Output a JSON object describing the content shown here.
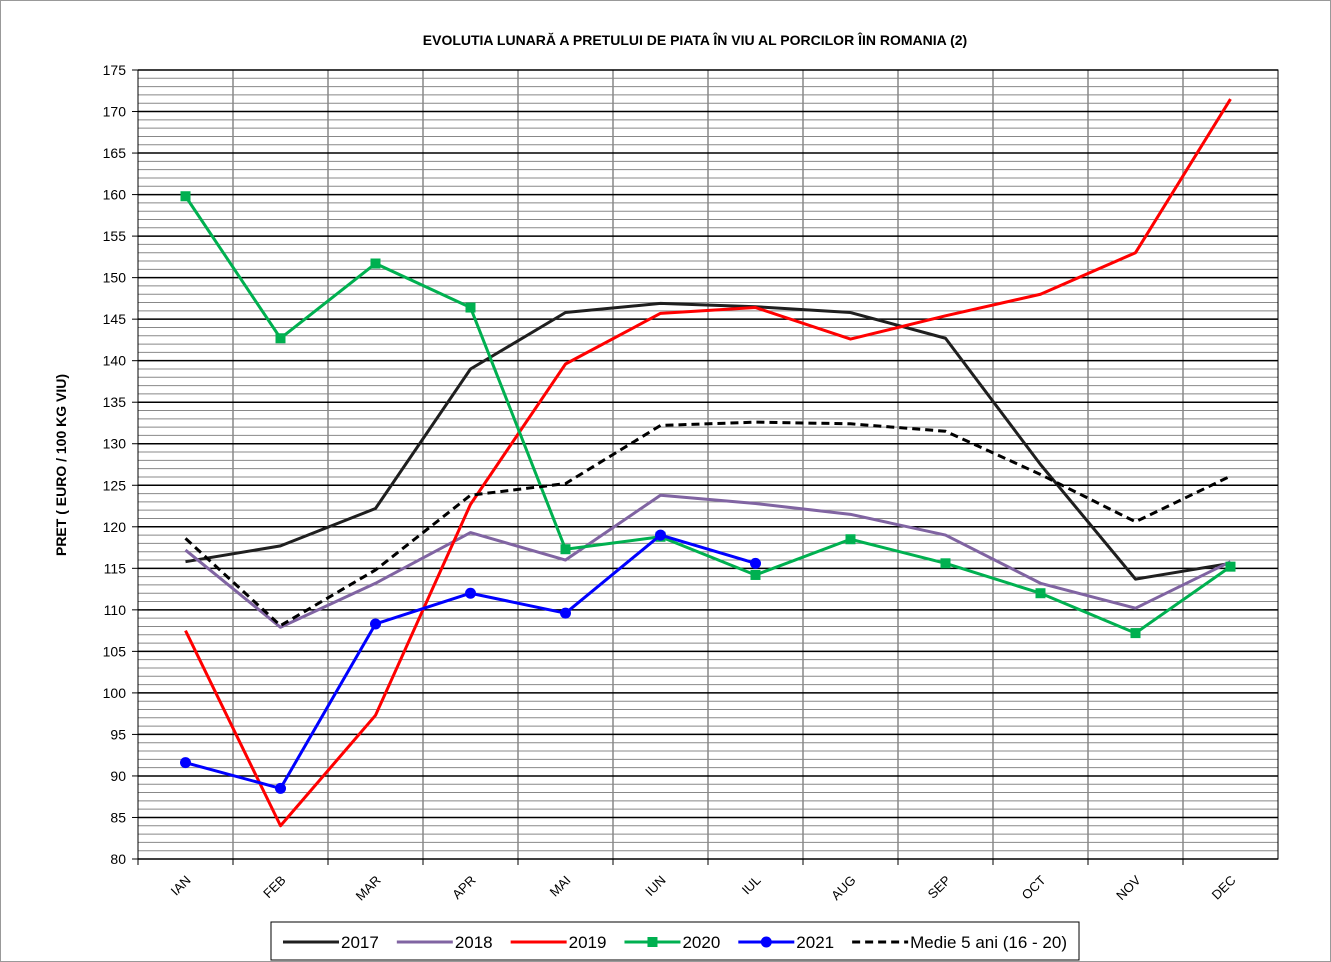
{
  "chart_data": {
    "type": "line",
    "title": "EVOLUTIA LUNARĂ A PRETULUI  DE PIATA ÎN VIU AL PORCILOR ÎIN ROMANIA (2)",
    "y_label": "PRET ( EURO / 100 KG VIU)",
    "categories": [
      "IAN",
      "FEB",
      "MAR",
      "APR",
      "MAI",
      "IUN",
      "IUL",
      "AUG",
      "SEP",
      "OCT",
      "NOV",
      "DEC"
    ],
    "ylim": [
      80,
      175
    ],
    "yticks": [
      80,
      85,
      90,
      95,
      100,
      105,
      110,
      115,
      120,
      125,
      130,
      135,
      140,
      145,
      150,
      155,
      160,
      165,
      170,
      175
    ],
    "grid": true,
    "minor_grid": true,
    "legend": "bottom",
    "series": [
      {
        "name": "2017",
        "color": "#1f1f1f",
        "values": [
          115.8,
          117.7,
          122.2,
          139,
          145.8,
          146.9,
          146.5,
          145.8,
          142.7,
          127.5,
          113.7,
          115.6
        ]
      },
      {
        "name": "2018",
        "color": "#8064a2",
        "values": [
          117.2,
          107.9,
          113.2,
          119.3,
          116,
          123.8,
          122.8,
          121.5,
          119,
          113.2,
          110.2,
          115.8
        ]
      },
      {
        "name": "2019",
        "color": "#ff0000",
        "values": [
          107.5,
          84,
          97.3,
          122.7,
          139.6,
          145.7,
          146.4,
          142.6,
          145.4,
          148,
          153,
          171.5
        ]
      },
      {
        "name": "2020",
        "color": "#00b050",
        "marker": "square",
        "values": [
          159.8,
          142.7,
          151.7,
          146.4,
          117.3,
          118.8,
          114.2,
          118.5,
          115.6,
          112,
          107.2,
          115.2
        ]
      },
      {
        "name": "2021",
        "color": "#0000ff",
        "marker": "circle",
        "values": [
          91.6,
          88.5,
          108.3,
          112,
          109.6,
          119,
          115.6,
          null,
          null,
          null,
          null,
          null
        ]
      },
      {
        "name": "Medie 5 ani (16 - 20)",
        "color": "#000000",
        "dashed": true,
        "values": [
          118.6,
          108.1,
          114.8,
          123.8,
          125.2,
          132.2,
          132.6,
          132.4,
          131.5,
          126.3,
          120.6,
          126.1
        ]
      }
    ]
  }
}
